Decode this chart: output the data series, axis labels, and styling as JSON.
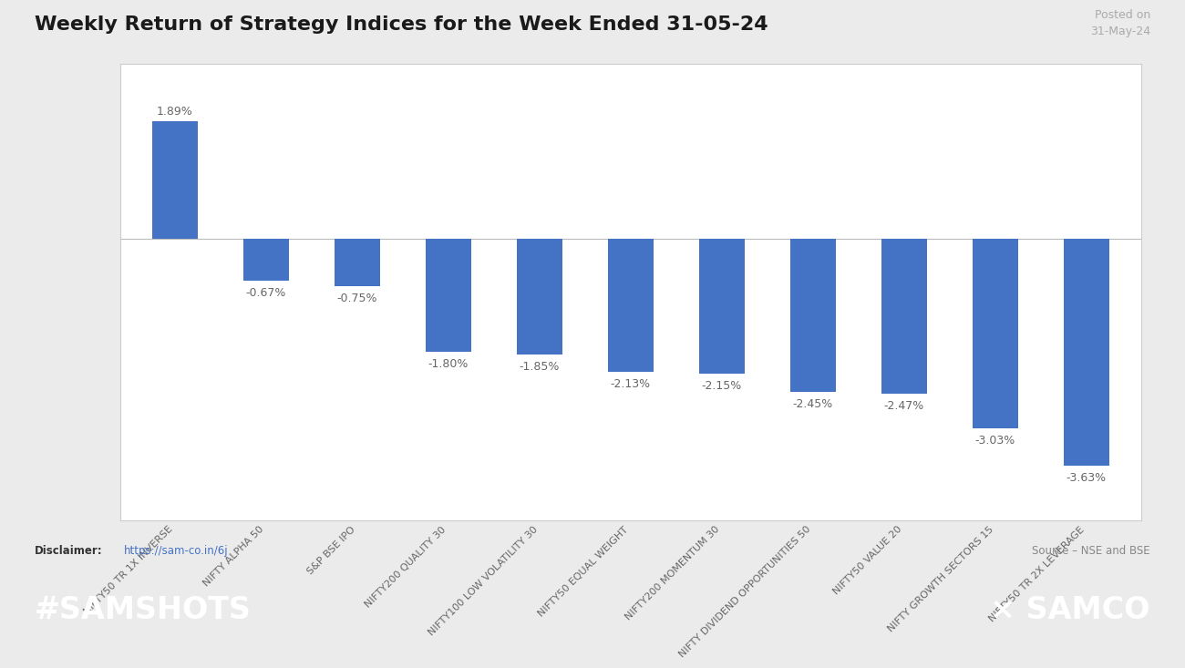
{
  "title": "Weekly Return of Strategy Indices for the Week Ended 31-05-24",
  "posted_on": "Posted on\n31-May-24",
  "categories": [
    "NIFTY50 TR 1X INVERSE",
    "NIFTY ALPHA 50",
    "S&P BSE IPO",
    "NIFTY200 QUALITY 30",
    "NIFTY100 LOW VOLATILITY 30",
    "NIFTY50 EQUAL WEIGHT",
    "NIFTY200 MOMENTUM 30",
    "NIFTY DIVIDEND OPPORTUNITIES 50",
    "NIFTY50 VALUE 20",
    "NIFTY GROWTH SECTORS 15",
    "NIFTY50 TR 2X LEVERAGE"
  ],
  "values": [
    1.89,
    -0.67,
    -0.75,
    -1.8,
    -1.85,
    -2.13,
    -2.15,
    -2.45,
    -2.47,
    -3.03,
    -3.63
  ],
  "labels": [
    "1.89%",
    "-0.67%",
    "-0.75%",
    "-1.80%",
    "-1.85%",
    "-2.13%",
    "-2.15%",
    "-2.45%",
    "-2.47%",
    "-3.03%",
    "-3.63%"
  ],
  "bar_color": "#4472C4",
  "bg_color": "#EBEBEB",
  "chart_bg": "#FFFFFF",
  "title_color": "#1A1A1A",
  "label_color": "#666666",
  "footer_bg": "#F07B5A",
  "footer_text_color": "#FFFFFF",
  "source_text": "Source – NSE and BSE",
  "ylim_min": -4.5,
  "ylim_max": 2.8
}
